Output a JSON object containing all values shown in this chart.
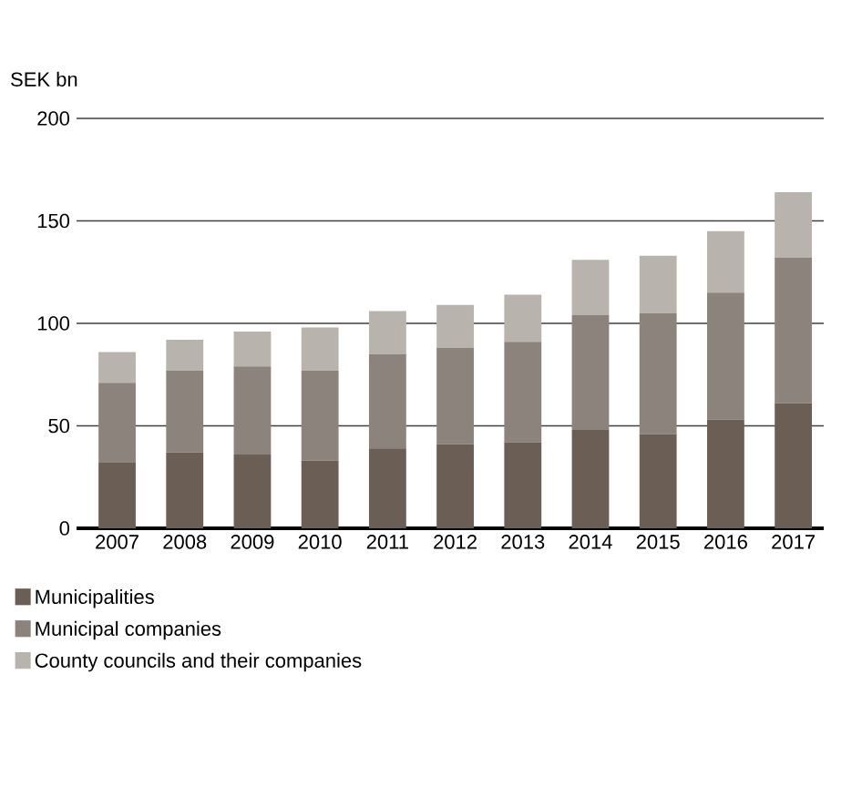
{
  "chart_data": {
    "type": "bar",
    "ylabel": "SEK bn",
    "stacked": true,
    "grid": "y",
    "legend": "bottom left",
    "categories": [
      "2007",
      "2008",
      "2009",
      "2010",
      "2011",
      "2012",
      "2013",
      "2014",
      "2015",
      "2016",
      "2017"
    ],
    "series": [
      {
        "name": "Municipalities",
        "color": "#6b5e55",
        "values": [
          32,
          37,
          36,
          33,
          39,
          41,
          42,
          48,
          46,
          53,
          61
        ]
      },
      {
        "name": "Municipal companies",
        "color": "#8c837c",
        "values": [
          39,
          40,
          43,
          44,
          46,
          47,
          49,
          56,
          59,
          62,
          71
        ]
      },
      {
        "name": "County councils and their companies",
        "color": "#b8b3ac",
        "values": [
          15,
          15,
          17,
          21,
          21,
          21,
          23,
          27,
          28,
          30,
          32
        ]
      }
    ],
    "ylim": [
      0,
      200
    ],
    "yticks": [
      0,
      50,
      100,
      150,
      200
    ]
  }
}
